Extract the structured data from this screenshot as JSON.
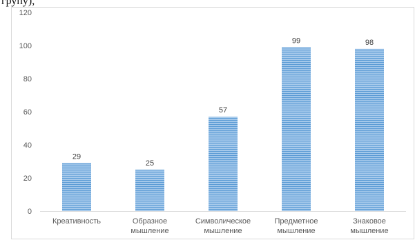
{
  "header_fragment": "групу),",
  "chart_data": {
    "type": "bar",
    "categories": [
      "Креативность",
      "Образное мышление",
      "Символическое мышление",
      "Предметное мышление",
      "Знаковое мышление"
    ],
    "category_lines": [
      [
        "Креативность"
      ],
      [
        "Образное",
        "мышление"
      ],
      [
        "Символическое",
        "мышление"
      ],
      [
        "Предметное",
        "мышление"
      ],
      [
        "Знаковое",
        "мышление"
      ]
    ],
    "values": [
      29,
      25,
      57,
      99,
      98
    ],
    "data_labels": [
      "29",
      "25",
      "57",
      "99",
      "98"
    ],
    "ylim": [
      0,
      120
    ],
    "yticks": [
      0,
      20,
      40,
      60,
      80,
      100,
      120
    ],
    "grid": false,
    "legend": "none",
    "title": "",
    "xlabel": "",
    "ylabel": "",
    "colors": {
      "bar_fill": "#9dc3e6",
      "bar_stripe": "#5b9bd5",
      "axis": "#d9d9d9",
      "frame": "#d9d9d9"
    }
  }
}
